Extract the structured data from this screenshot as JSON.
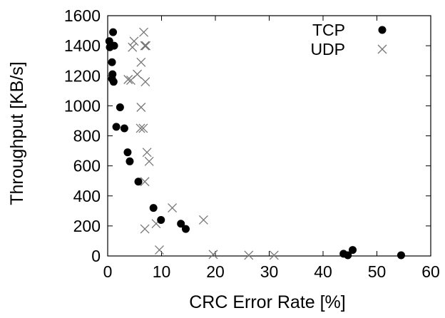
{
  "chart_data": {
    "type": "scatter",
    "title": "",
    "xlabel": "CRC Error Rate [%]",
    "ylabel": "Throughput [KB/s]",
    "xlim": [
      0,
      60
    ],
    "ylim": [
      0,
      1600
    ],
    "xticks": [
      0,
      10,
      20,
      30,
      40,
      50,
      60
    ],
    "yticks": [
      0,
      200,
      400,
      600,
      800,
      1000,
      1200,
      1400,
      1600
    ],
    "grid": false,
    "legend_position": "top-right",
    "series": [
      {
        "name": "TCP",
        "marker": "filled-circle",
        "color": "#000000",
        "points": [
          [
            0.3,
            1430
          ],
          [
            0.4,
            1390
          ],
          [
            1.0,
            1490
          ],
          [
            1.2,
            1400
          ],
          [
            0.8,
            1290
          ],
          [
            0.9,
            1210
          ],
          [
            0.8,
            1180
          ],
          [
            1.1,
            1160
          ],
          [
            2.3,
            990
          ],
          [
            1.6,
            860
          ],
          [
            3.1,
            850
          ],
          [
            3.7,
            690
          ],
          [
            4.1,
            630
          ],
          [
            5.7,
            495
          ],
          [
            8.5,
            320
          ],
          [
            9.9,
            240
          ],
          [
            13.6,
            215
          ],
          [
            14.5,
            180
          ],
          [
            43.8,
            15
          ],
          [
            44.6,
            5
          ],
          [
            45.5,
            40
          ],
          [
            54.5,
            5
          ]
        ]
      },
      {
        "name": "UDP",
        "marker": "x-cross",
        "color": "#777777",
        "points": [
          [
            4.6,
            1390
          ],
          [
            4.9,
            1430
          ],
          [
            6.7,
            1490
          ],
          [
            6.9,
            1400
          ],
          [
            7.1,
            1400
          ],
          [
            6.2,
            1290
          ],
          [
            5.5,
            1210
          ],
          [
            3.8,
            1175
          ],
          [
            4.3,
            1170
          ],
          [
            7.0,
            1160
          ],
          [
            6.2,
            990
          ],
          [
            6.1,
            850
          ],
          [
            6.6,
            850
          ],
          [
            7.3,
            690
          ],
          [
            7.7,
            630
          ],
          [
            6.9,
            495
          ],
          [
            6.9,
            180
          ],
          [
            9.0,
            215
          ],
          [
            12.0,
            320
          ],
          [
            17.8,
            240
          ],
          [
            9.6,
            40
          ],
          [
            19.6,
            10
          ],
          [
            26.2,
            5
          ],
          [
            30.9,
            5
          ]
        ]
      }
    ]
  }
}
